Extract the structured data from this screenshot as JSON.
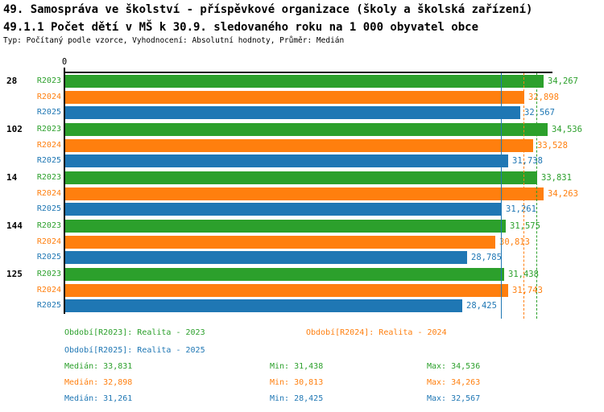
{
  "header": {
    "title_line1": "49. Samospráva ve školství - příspěvkové organizace (školy a školská zařízení)",
    "title_line2": "49.1.1 Počet dětí v MŠ k 30.9. sledovaného roku na 1 000 obyvatel obce",
    "subtitle": "Typ: Počítaný podle vzorce, Vyhodnocení: Absolutní hodnoty, Průměr: Medián"
  },
  "colors": {
    "series_2023": "#2ca02c",
    "series_2024": "#ff7f0e",
    "series_2025": "#1f77b4",
    "axis": "#000000",
    "background": "#ffffff"
  },
  "chart_data": {
    "type": "bar",
    "orientation": "horizontal",
    "title": "49.1.1 Počet dětí v MŠ k 30.9. sledovaného roku na 1 000 obyvatel obce",
    "axis_zero_label": "0",
    "xlim": [
      0,
      34.9
    ],
    "grid": false,
    "legend_position": "bottom",
    "categories": [
      "28",
      "102",
      "14",
      "144",
      "125"
    ],
    "series": [
      {
        "name": "R2023",
        "color": "#2ca02c",
        "line_style": "dashed",
        "median_line": 33.831,
        "values": [
          34.267,
          34.536,
          33.831,
          31.575,
          31.438
        ],
        "display": [
          "34,267",
          "34,536",
          "33,831",
          "31,575",
          "31,438"
        ]
      },
      {
        "name": "R2024",
        "color": "#ff7f0e",
        "line_style": "dashed",
        "median_line": 32.898,
        "values": [
          32.898,
          33.528,
          34.263,
          30.813,
          31.743
        ],
        "display": [
          "32,898",
          "33,528",
          "34,263",
          "30,813",
          "31,743"
        ]
      },
      {
        "name": "R2025",
        "color": "#1f77b4",
        "line_style": "solid",
        "median_line": 31.261,
        "values": [
          32.567,
          31.738,
          31.261,
          28.785,
          28.425
        ],
        "display": [
          "32,567",
          "31,738",
          "31,261",
          "28,785",
          "28,425"
        ]
      }
    ],
    "legend": [
      {
        "text": "Období[R2023]: Realita - 2023",
        "series_index": 0
      },
      {
        "text": "Období[R2024]: Realita - 2024",
        "series_index": 1
      },
      {
        "text": "Období[R2025]: Realita - 2025",
        "series_index": 2
      }
    ],
    "stats": [
      {
        "median": "Medián: 33,831",
        "min": "Min: 31,438",
        "max": "Max: 34,536",
        "series_index": 0
      },
      {
        "median": "Medián: 32,898",
        "min": "Min: 30,813",
        "max": "Max: 34,263",
        "series_index": 1
      },
      {
        "median": "Medián: 31,261",
        "min": "Min: 28,425",
        "max": "Max: 32,567",
        "series_index": 2
      }
    ]
  }
}
